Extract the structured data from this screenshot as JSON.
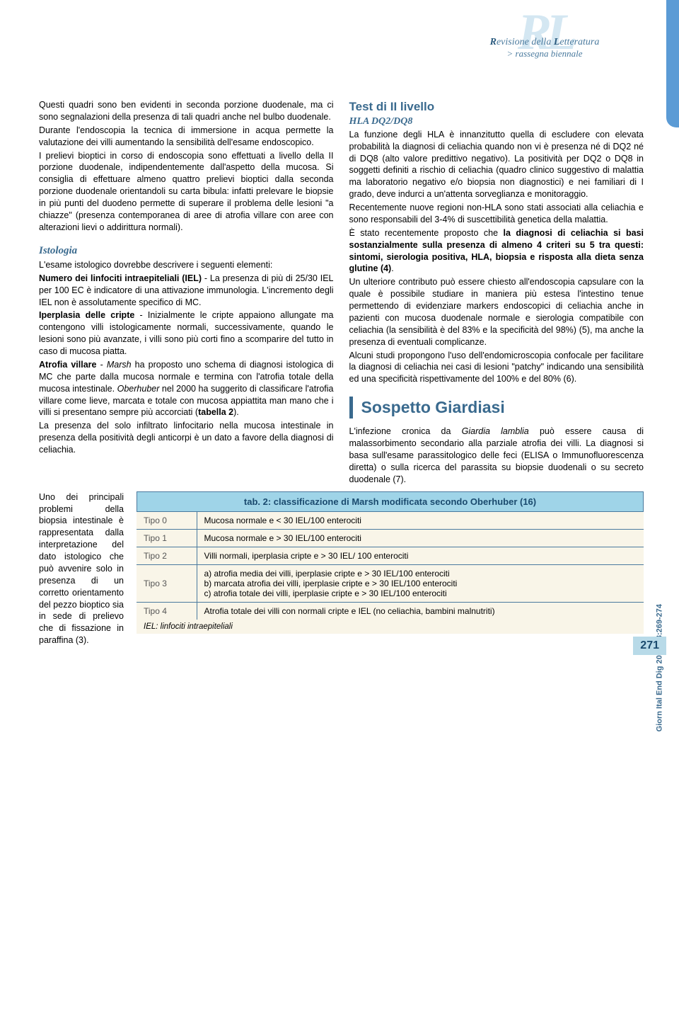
{
  "header": {
    "logo_bg": "RL",
    "logo_line1_pre": "R",
    "logo_line1_mid": "evisione della ",
    "logo_line1_bold2": "L",
    "logo_line1_end": "etteratura",
    "logo_line2": "> rassegna biennale"
  },
  "col1": {
    "p1": "Questi quadri sono ben evidenti in seconda porzione duodenale, ma ci sono segnalazioni della presenza di tali quadri anche nel bulbo duodenale.",
    "p2": "Durante l'endoscopia la tecnica di immersione in acqua permette la valutazione dei villi aumentando la sensibilità dell'esame endoscopico.",
    "p3": "I prelievi bioptici in corso di endoscopia sono effettuati a livello della II porzione duodenale, indipendentemente dall'aspetto della mucosa. Si consiglia di effettuare almeno quattro prelievi bioptici dalla seconda porzione duodenale orientandoli su carta bibula: infatti prelevare le biopsie in più punti del duodeno permette di superare il problema delle lesioni \"a chiazze\" (presenza contemporanea di aree di atrofia villare con aree con alterazioni lievi o addirittura normali).",
    "istologia_title": "Istologia",
    "p4": "L'esame istologico dovrebbe descrivere i seguenti elementi:",
    "p5_b": "Numero dei linfociti intraepiteliali (IEL)",
    "p5": " - La presenza di più di 25/30 IEL per 100 EC è indicatore di una attivazione immunologia. L'incremento degli IEL non è assolutamente specifico di MC.",
    "p6_b": "Iperplasia delle cripte",
    "p6": " - Inizialmente le cripte appaiono allungate ma contengono villi istologicamente normali, successivamente, quando le lesioni sono più avanzate, i villi sono più corti fino a scomparire del tutto in caso di mucosa piatta.",
    "p7_b": "Atrofia villare",
    "p7a": " - ",
    "p7_it": "Marsh",
    "p7b": " ha proposto uno schema di diagnosi istologica di MC che parte dalla mucosa normale e termina con l'atrofia totale della mucosa intestinale. ",
    "p7_it2": "Oberhuber",
    "p7c": " nel 2000 ha suggerito di classificare l'atrofia villare come lieve, marcata e totale con mucosa appiattita man mano che i villi si presentano sempre più accorciati (",
    "p7_b2": "tabella 2",
    "p7d": ").",
    "p8": "La presenza del solo infiltrato linfocitario nella mucosa intestinale in presenza della positività degli anticorpi è un dato a favore della diagnosi di celiachia.",
    "narrow": "Uno dei principali problemi della biopsia intestinale è rappresentata dalla interpretazione del dato istologico che può avvenire solo in presenza di un corretto orientamento del pezzo bioptico sia in sede di prelievo che di fissazione in paraffina (3)."
  },
  "col2": {
    "test_title": "Test di II livello",
    "test_sub": "HLA DQ2/DQ8",
    "p1": "La funzione degli HLA è innanzitutto quella di escludere con elevata probabilità la diagnosi di celiachia quando non vi è presenza né di DQ2 né di DQ8 (alto valore predittivo negativo). La positività per DQ2 o DQ8 in soggetti definiti a rischio di celiachia (quadro clinico suggestivo di malattia ma laboratorio negativo e/o biopsia non diagnostici) e nei familiari di I grado, deve indurci a un'attenta sorveglianza e monitoraggio.",
    "p2": "Recentemente nuove regioni non-HLA sono stati associati alla celiachia e sono responsabili del 3-4% di suscettibilità genetica della malattia.",
    "p3a": "È stato recentemente proposto che ",
    "p3b": "la diagnosi di celiachia si basi sostanzialmente sulla presenza di almeno 4 criteri su 5 tra questi: sintomi, sierologia positiva, HLA, biopsia e risposta alla dieta senza glutine (4)",
    "p3c": ".",
    "p4": "Un ulteriore contributo può essere chiesto all'endoscopia capsulare con la quale è possibile studiare in maniera più estesa l'intestino tenue permettendo di evidenziare markers endoscopici di celiachia anche in pazienti con mucosa duodenale normale e sierologia compatibile con celiachia (la sensibilità è del 83% e la specificità del 98%) (5), ma anche la presenza di eventuali complicanze.",
    "p5": "Alcuni studi propongono l'uso dell'endomicroscopia confocale per facilitare la diagnosi di celiachia nei casi di lesioni \"patchy\" indicando una sensibilità ed una specificità rispettivamente del 100% e del 80% (6).",
    "giardiasi_title": "Sospetto Giardiasi",
    "p6a": "L'infezione cronica da ",
    "p6_it": "Giardia lamblia",
    "p6b": " può essere causa di malassorbimento secondario alla parziale atrofia dei villi. La diagnosi si basa sull'esame parassitologico delle feci (ELISA o Immunofluorescenza diretta) o sulla ricerca del parassita su biopsie duodenali o su secreto duodenale (7)."
  },
  "table": {
    "title": "tab. 2: classificazione di Marsh modificata secondo Oberhuber (16)",
    "rows": [
      {
        "type": "Tipo 0",
        "desc": "Mucosa normale e < 30 IEL/100 enterociti"
      },
      {
        "type": "Tipo 1",
        "desc": "Mucosa normale e > 30 IEL/100 enterociti"
      },
      {
        "type": "Tipo 2",
        "desc": "Villi normali, iperplasia cripte e > 30 IEL/ 100 enterociti"
      },
      {
        "type": "Tipo 3",
        "desc": "a) atrofia media dei villi, iperplasie cripte e > 30 IEL/100 enterociti\nb) marcata atrofia dei villi, iperplasie cripte e > 30 IEL/100 enterociti\nc) atrofia totale dei villi, iperplasie cripte e > 30 IEL/100 enterociti"
      },
      {
        "type": "Tipo 4",
        "desc": "Atrofia totale dei villi con normali cripte e IEL (no celiachia, bambini malnutriti)"
      }
    ],
    "footnote": "IEL: linfociti intraepiteliali"
  },
  "citation": "Giorn Ital End Dig 2010;33:269-274",
  "page_number": "271",
  "styles": {
    "accent_color": "#3a6a8e",
    "table_header_bg": "#9fd4e8",
    "table_body_bg": "#f9f5e8",
    "body_font_size": 12.5,
    "title_font_size": 17
  }
}
